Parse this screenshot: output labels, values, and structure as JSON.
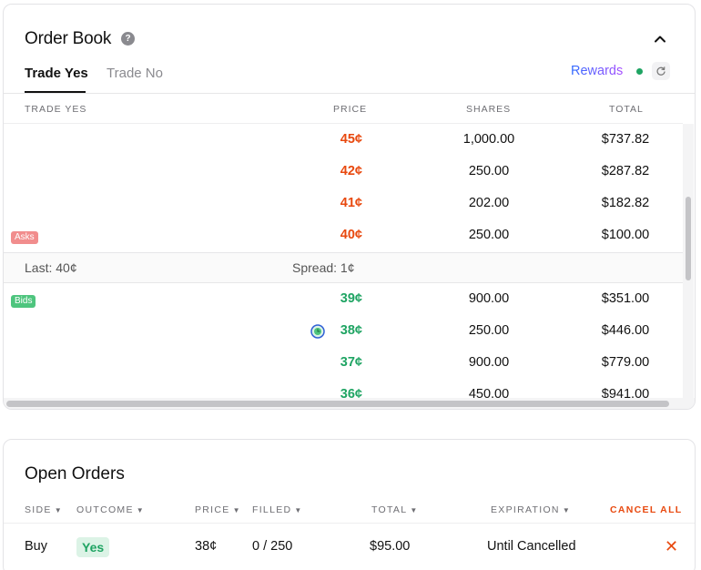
{
  "order_book": {
    "title": "Order Book",
    "help_icon": "question-mark-icon",
    "collapse_icon": "chevron-up-icon",
    "tabs": [
      {
        "label": "Trade Yes",
        "active": true
      },
      {
        "label": "Trade No",
        "active": false
      }
    ],
    "rewards_label": "Rewards",
    "rewards_status_color": "#1fa463",
    "refresh_icon": "refresh-icon",
    "columns": {
      "side": "TRADE YES",
      "price": "PRICE",
      "shares": "SHARES",
      "total": "TOTAL"
    },
    "asks": [
      {
        "price": "45¢",
        "shares": "1,000.00",
        "total": "$737.82",
        "depth": 0.12
      },
      {
        "price": "42¢",
        "shares": "250.00",
        "total": "$287.82",
        "depth": 0.05
      },
      {
        "price": "41¢",
        "shares": "202.00",
        "total": "$182.82",
        "depth": 0.03
      },
      {
        "price": "40¢",
        "shares": "250.00",
        "total": "$100.00",
        "depth": 0.02
      }
    ],
    "asks_badge": "Asks",
    "spread": {
      "last": "Last: 40¢",
      "spread": "Spread: 1¢"
    },
    "bids_badge": "Bids",
    "bids": [
      {
        "price": "39¢",
        "shares": "900.00",
        "total": "$351.00",
        "depth": 0.12,
        "my_order": false
      },
      {
        "price": "38¢",
        "shares": "250.00",
        "total": "$446.00",
        "depth": 0.16,
        "my_order": true
      },
      {
        "price": "37¢",
        "shares": "900.00",
        "total": "$779.00",
        "depth": 0.27,
        "my_order": false
      },
      {
        "price": "36¢",
        "shares": "450.00",
        "total": "$941.00",
        "depth": 0.32,
        "my_order": false
      }
    ],
    "ask_color": "#e8490f",
    "bid_color": "#1fa463"
  },
  "open_orders": {
    "title": "Open Orders",
    "columns": {
      "side": "SIDE",
      "outcome": "OUTCOME",
      "price": "PRICE",
      "filled": "FILLED",
      "total": "TOTAL",
      "expiration": "EXPIRATION"
    },
    "cancel_all_label": "CANCEL ALL",
    "rows": [
      {
        "side": "Buy",
        "outcome": "Yes",
        "price": "38¢",
        "filled": "0 / 250",
        "total": "$95.00",
        "expiration": "Until Cancelled"
      }
    ],
    "cancel_icon": "close-icon"
  }
}
